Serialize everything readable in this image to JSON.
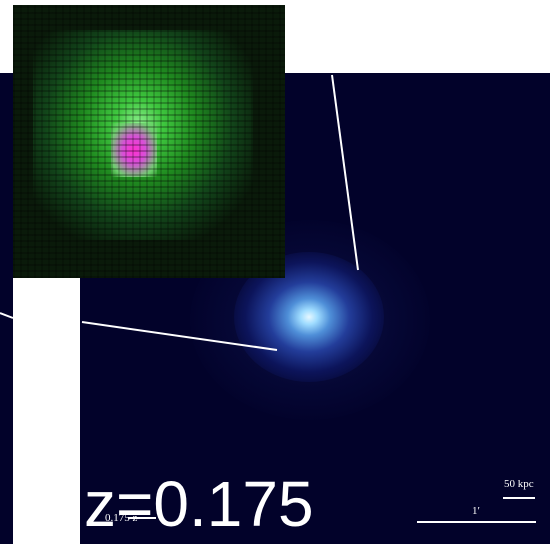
{
  "redshift_label": "z=0.175",
  "redshift_small_label": "0.175 z",
  "scale_bar_physical": "50 kpc",
  "scale_bar_angular": "1′"
}
